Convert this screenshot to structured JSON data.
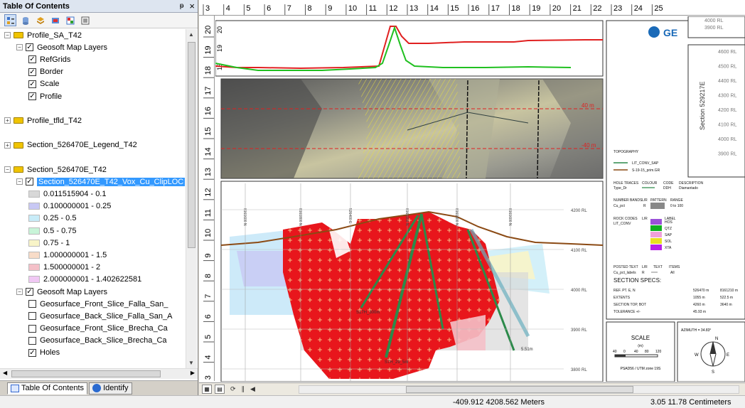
{
  "toc": {
    "title": "Table Of Contents",
    "pin_label": "ᵽ",
    "close_label": "×",
    "tree": [
      {
        "level": 0,
        "expander": "−",
        "folder": true,
        "label": "Profile_SA_T42"
      },
      {
        "level": 1,
        "expander": "−",
        "checked": true,
        "label": "Geosoft Map Layers"
      },
      {
        "level": 2,
        "checked": true,
        "label": "RefGrids"
      },
      {
        "level": 2,
        "checked": true,
        "label": "Border"
      },
      {
        "level": 2,
        "checked": true,
        "label": "Scale"
      },
      {
        "level": 2,
        "checked": true,
        "label": "Profile"
      },
      {
        "level": 0,
        "blank": true
      },
      {
        "level": 0,
        "expander": "+",
        "folder": true,
        "label": "Profile_tfld_T42"
      },
      {
        "level": 0,
        "blank": true
      },
      {
        "level": 0,
        "expander": "+",
        "folder": true,
        "label": "Section_526470E_Legend_T42"
      },
      {
        "level": 0,
        "blank": true
      },
      {
        "level": 0,
        "expander": "−",
        "folder": true,
        "label": "Section_526470E_T42"
      },
      {
        "level": 1,
        "expander": "−",
        "checked": true,
        "label": "Section_526470E_T42_Vox_Cu_ClipLOC",
        "selected": true
      },
      {
        "level": 2,
        "swatch": "#d8d8d8",
        "label": "0.011515904 - 0.1"
      },
      {
        "level": 2,
        "swatch": "#c8c8f4",
        "label": "0.100000001 - 0.25"
      },
      {
        "level": 2,
        "swatch": "#c8ecf8",
        "label": "0.25 - 0.5"
      },
      {
        "level": 2,
        "swatch": "#c8f4d8",
        "label": "0.5 - 0.75"
      },
      {
        "level": 2,
        "swatch": "#f8f4c8",
        "label": "0.75 - 1"
      },
      {
        "level": 2,
        "swatch": "#f8dcc8",
        "label": "1.000000001 - 1.5"
      },
      {
        "level": 2,
        "swatch": "#f4c0c8",
        "label": "1.500000001 - 2"
      },
      {
        "level": 2,
        "swatch": "#f0c8f4",
        "label": "2.000000001 - 1.402622581"
      },
      {
        "level": 1,
        "expander": "−",
        "checked": true,
        "label": "Geosoft Map Layers"
      },
      {
        "level": 2,
        "checked": false,
        "label": "Geosurface_Front_Slice_Falla_San_"
      },
      {
        "level": 2,
        "checked": false,
        "label": "Geosurface_Back_Slice_Falla_San_A"
      },
      {
        "level": 2,
        "checked": false,
        "label": "Geosurface_Front_Slice_Brecha_Ca"
      },
      {
        "level": 2,
        "checked": false,
        "label": "Geosurface_Back_Slice_Brecha_Ca"
      },
      {
        "level": 2,
        "checked": true,
        "label": "Holes"
      }
    ],
    "tabs": [
      {
        "label": "Table Of Contents",
        "active": true
      },
      {
        "label": "Identify",
        "active": false
      }
    ]
  },
  "ruler_top": [
    "3",
    "4",
    "5",
    "6",
    "7",
    "8",
    "9",
    "10",
    "11",
    "12",
    "13",
    "14",
    "15",
    "16",
    "17",
    "18",
    "19",
    "20",
    "21",
    "22",
    "23",
    "24",
    "25"
  ],
  "ruler_left": [
    "20",
    "19",
    "18",
    "17",
    "16",
    "15",
    "14",
    "13",
    "12",
    "11",
    "10",
    "9",
    "8",
    "7",
    "6",
    "5",
    "4",
    "3"
  ],
  "map": {
    "profile_ticks": [
      "20",
      "19",
      "18"
    ],
    "photo_labels": [
      "40 m",
      "-40 m"
    ],
    "section_rl": [
      "4200 RL",
      "4100 RL",
      "4000 RL",
      "3900 RL",
      "3800 RL"
    ],
    "northings": [
      "8161600 N",
      "8161800 N",
      "526400 E",
      "8161900 N",
      "8161800 N",
      "8161600 N"
    ],
    "hole_labels": [
      "S7H_29_5m",
      "S17H_300m",
      "5.51m"
    ],
    "right_rl": [
      "4600 RL",
      "4500 RL",
      "4400 RL",
      "4300 RL",
      "4200 RL",
      "4100 RL",
      "4000 RL",
      "3900 RL"
    ],
    "right_top_rl": [
      "4000 RL",
      "3900 RL"
    ],
    "section_label": "Section 529217E",
    "logo_text": "GE",
    "legend": {
      "topography_title": "TOPOGRAPHY",
      "topo_items": [
        "LIT_CONV_SAP",
        "S-19-15_prim.GR"
      ],
      "hole_traces": [
        "HOLE TRACES",
        "COLOUR",
        "CODE",
        "DESCRIPTION"
      ],
      "hole_trace_row": [
        "Type_Dr",
        "DDH",
        "Diamantado"
      ],
      "number_bands": [
        "NUMBER BANDS",
        "L/R",
        "PATTERN",
        "RANGE"
      ],
      "number_bands_row": [
        "Cu_pct",
        "R",
        "0 to 100"
      ],
      "rock_codes": [
        "ROCK CODES",
        "L/R",
        "LABEL"
      ],
      "rock_codes_first": "LIT_CONV",
      "rock_labels": [
        "HOS",
        "QTZ",
        "SAP",
        "SOL",
        "XTA"
      ],
      "posted_text": [
        "POSTED TEXT",
        "L/R",
        "TEXT",
        "ITEMS"
      ],
      "posted_text_row": [
        "Cu_pct_labels",
        "R",
        "All"
      ],
      "specs_title": "SECTION SPECS:",
      "specs": [
        [
          "REF. PT. E, N",
          "526470 m",
          "8161210 m"
        ],
        [
          "EXTENTS",
          "1055 m",
          "522.5 m"
        ],
        [
          "SECTION TOP, BOT",
          "4260 m",
          "3640 m"
        ],
        [
          "TOLERANCE +/-",
          "45.93 m",
          ""
        ]
      ],
      "scale_title": "SCALE",
      "scale_unit": "(m)",
      "scale_ticks": [
        "40",
        "0",
        "40",
        "80",
        "120"
      ],
      "scale_datum": "PSAD56 / UTM zone 19S",
      "azimuth": "AZIMUTH = 34.83°",
      "compass": [
        "N",
        "E",
        "S",
        "W"
      ]
    }
  },
  "status": {
    "coords": "-409.912  4208.562 Meters",
    "page": "3.05  11.78 Centimeters"
  },
  "colors": {
    "selection": "#3399ff",
    "ore_red": "#e8161c",
    "profile_red": "#e02020",
    "profile_green": "#20c020",
    "topography": "#8b4a14",
    "hole_green": "#2c8a4a"
  }
}
